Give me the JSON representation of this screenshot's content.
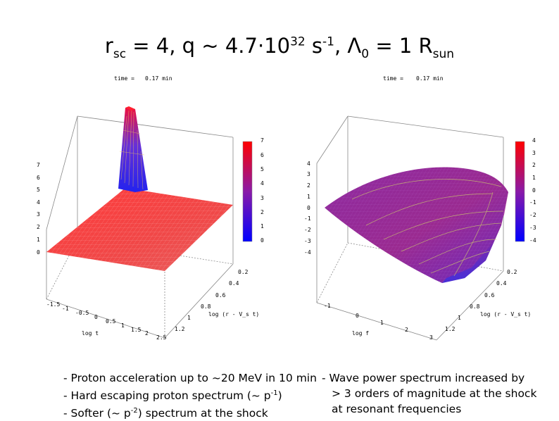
{
  "title": {
    "r": "r",
    "r_sub": "sc",
    "eq1": " = 4, q ~ 4.7·10",
    "q_exp": "32",
    "s": " s",
    "s_exp": "-1",
    "lambda": ", Λ",
    "lambda_sub": "0",
    "eq2": " = 1 R",
    "r_sub2": "sun"
  },
  "bullets_left": [
    "- Proton acceleration up to ~20 MeV in 10 min",
    "- Hard escaping proton spectrum (~ p",
    "- Softer (~ p"
  ],
  "bullets_left_exp": [
    "-1",
    "-2"
  ],
  "bullets_left_tail": [
    ")",
    ") spectrum at the shock"
  ],
  "bullets_right": [
    "- Wave power spectrum increased by",
    "> 3 orders of magnitude at the shock",
    "at resonant frequencies"
  ],
  "chart_data": [
    {
      "type": "surface",
      "time_label": "time =",
      "time_value": "0.17 min",
      "xlabel": "log t",
      "ylabel": "log (r - V_s t)",
      "x_ticks": [
        "-1.5",
        "-1",
        "-0.5",
        "0",
        "0.5",
        "1",
        "1.5",
        "2",
        "2.5"
      ],
      "y_ticks": [
        "0.2",
        "0.4",
        "0.6",
        "0.8",
        "1",
        "1.2"
      ],
      "z_ticks": [
        "0",
        "1",
        "2",
        "3",
        "4",
        "5",
        "6",
        "7"
      ],
      "colorbar_ticks": [
        "0",
        "1",
        "2",
        "3",
        "4",
        "5",
        "6",
        "7"
      ],
      "zlim": [
        0,
        7
      ],
      "colors": {
        "low": "#0000ff",
        "high": "#ff0000"
      }
    },
    {
      "type": "surface",
      "time_label": "time =",
      "time_value": "0.17 min",
      "xlabel": "log f",
      "ylabel": "log (r - V_s t)",
      "x_ticks": [
        "-1",
        "0",
        "1",
        "2",
        "3"
      ],
      "y_ticks": [
        "0.2",
        "0.4",
        "0.6",
        "0.8",
        "1",
        "1.2"
      ],
      "z_ticks": [
        "-4",
        "-3",
        "-2",
        "-1",
        "0",
        "1",
        "2",
        "3",
        "4"
      ],
      "colorbar_ticks": [
        "-4",
        "-3",
        "-2",
        "-1",
        "0",
        "1",
        "2",
        "3",
        "4"
      ],
      "zlim": [
        -4,
        4
      ],
      "colors": {
        "low": "#0000ff",
        "high": "#ff0000"
      }
    }
  ]
}
